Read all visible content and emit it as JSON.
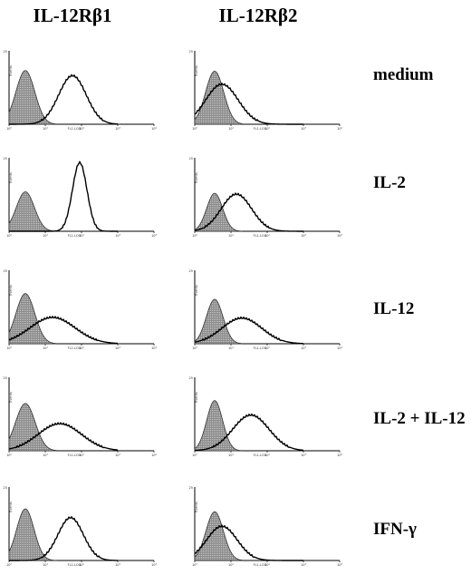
{
  "figure": {
    "columns": [
      "IL-12Rβ1",
      "IL-12Rβ2"
    ],
    "rows": [
      "medium",
      "IL-2",
      "IL-12",
      "IL-2 + IL-12",
      "IFN-γ"
    ]
  },
  "colors": {
    "control_fill": "#8c8c8c",
    "stain_line": "#000000",
    "axis": "#000000"
  },
  "chart_data": [
    {
      "type": "area",
      "column": "IL-12Rβ1",
      "row": "medium",
      "xlabel": "FL1-LOG",
      "ylabel": "Events",
      "ymax_label": "25",
      "x_scale": "log",
      "xlim": [
        1,
        10000
      ],
      "x_ticks": [
        "10⁰",
        "10¹",
        "10²",
        "10³",
        "10⁴"
      ],
      "series": [
        {
          "type": "control",
          "peak_log": 0.45,
          "width": 0.26,
          "height": 0.75
        },
        {
          "type": "stained",
          "peak_log": 1.75,
          "width": 0.38,
          "height": 0.68
        }
      ]
    },
    {
      "type": "area",
      "column": "IL-12Rβ2",
      "row": "medium",
      "xlabel": "FL1-LOG",
      "ylabel": "Events",
      "ymax_label": "25",
      "x_scale": "log",
      "xlim": [
        1,
        10000
      ],
      "x_ticks": [
        "10⁰",
        "10¹",
        "10²",
        "10³",
        "10⁴"
      ],
      "series": [
        {
          "type": "control",
          "peak_log": 0.55,
          "width": 0.25,
          "height": 0.74
        },
        {
          "type": "stained",
          "peak_log": 0.75,
          "width": 0.45,
          "height": 0.56
        }
      ]
    },
    {
      "type": "area",
      "column": "IL-12Rβ1",
      "row": "IL-2",
      "xlabel": "FL1-LOG",
      "ylabel": "Events",
      "ymax_label": "25",
      "x_scale": "log",
      "xlim": [
        1,
        10000
      ],
      "x_ticks": [
        "10⁰",
        "10¹",
        "10²",
        "10³",
        "10⁴"
      ],
      "series": [
        {
          "type": "control",
          "peak_log": 0.45,
          "width": 0.25,
          "height": 0.55
        },
        {
          "type": "stained",
          "peak_log": 1.95,
          "width": 0.2,
          "height": 0.96
        }
      ]
    },
    {
      "type": "area",
      "column": "IL-12Rβ2",
      "row": "IL-2",
      "xlabel": "FL1-LOG",
      "ylabel": "Events",
      "ymax_label": "25",
      "x_scale": "log",
      "xlim": [
        1,
        10000
      ],
      "x_ticks": [
        "10⁰",
        "10¹",
        "10²",
        "10³",
        "10⁴"
      ],
      "series": [
        {
          "type": "control",
          "peak_log": 0.55,
          "width": 0.22,
          "height": 0.53
        },
        {
          "type": "stained",
          "peak_log": 1.15,
          "width": 0.42,
          "height": 0.52
        }
      ]
    },
    {
      "type": "area",
      "column": "IL-12Rβ1",
      "row": "IL-12",
      "xlabel": "FL1-LOG",
      "ylabel": "Events",
      "ymax_label": "25",
      "x_scale": "log",
      "xlim": [
        1,
        10000
      ],
      "x_ticks": [
        "10⁰",
        "10¹",
        "10²",
        "10³",
        "10⁴"
      ],
      "series": [
        {
          "type": "control",
          "peak_log": 0.45,
          "width": 0.26,
          "height": 0.7
        },
        {
          "type": "stained",
          "peak_log": 1.2,
          "width": 0.62,
          "height": 0.37
        }
      ]
    },
    {
      "type": "area",
      "column": "IL-12Rβ2",
      "row": "IL-12",
      "xlabel": "FL1-LOG",
      "ylabel": "Events",
      "ymax_label": "25",
      "x_scale": "log",
      "xlim": [
        1,
        10000
      ],
      "x_ticks": [
        "10⁰",
        "10¹",
        "10²",
        "10³",
        "10⁴"
      ],
      "series": [
        {
          "type": "control",
          "peak_log": 0.55,
          "width": 0.23,
          "height": 0.62
        },
        {
          "type": "stained",
          "peak_log": 1.3,
          "width": 0.55,
          "height": 0.36
        }
      ]
    },
    {
      "type": "area",
      "column": "IL-12Rβ1",
      "row": "IL-2 + IL-12",
      "xlabel": "FL1-LOG",
      "ylabel": "Events",
      "ymax_label": "25",
      "x_scale": "log",
      "xlim": [
        1,
        10000
      ],
      "x_ticks": [
        "10⁰",
        "10¹",
        "10²",
        "10³",
        "10⁴"
      ],
      "series": [
        {
          "type": "control",
          "peak_log": 0.45,
          "width": 0.27,
          "height": 0.66
        },
        {
          "type": "stained",
          "peak_log": 1.4,
          "width": 0.6,
          "height": 0.38
        }
      ]
    },
    {
      "type": "area",
      "column": "IL-12Rβ2",
      "row": "IL-2 + IL-12",
      "xlabel": "FL1-LOG",
      "ylabel": "Events",
      "ymax_label": "25",
      "x_scale": "log",
      "xlim": [
        1,
        10000
      ],
      "x_ticks": [
        "10⁰",
        "10¹",
        "10²",
        "10³",
        "10⁴"
      ],
      "series": [
        {
          "type": "control",
          "peak_log": 0.55,
          "width": 0.22,
          "height": 0.7
        },
        {
          "type": "stained",
          "peak_log": 1.55,
          "width": 0.5,
          "height": 0.5
        }
      ]
    },
    {
      "type": "area",
      "column": "IL-12Rβ1",
      "row": "IFN-γ",
      "xlabel": "FL1-LOG",
      "ylabel": "Events",
      "ymax_label": "25",
      "x_scale": "log",
      "xlim": [
        1,
        10000
      ],
      "x_ticks": [
        "10⁰",
        "10¹",
        "10²",
        "10³",
        "10⁴"
      ],
      "series": [
        {
          "type": "control",
          "peak_log": 0.45,
          "width": 0.24,
          "height": 0.72
        },
        {
          "type": "stained",
          "peak_log": 1.7,
          "width": 0.35,
          "height": 0.6
        }
      ]
    },
    {
      "type": "area",
      "column": "IL-12Rβ2",
      "row": "IFN-γ",
      "xlabel": "FL1-LOG",
      "ylabel": "Events",
      "ymax_label": "25",
      "x_scale": "log",
      "xlim": [
        1,
        10000
      ],
      "x_ticks": [
        "10⁰",
        "10¹",
        "10²",
        "10³",
        "10⁴"
      ],
      "series": [
        {
          "type": "control",
          "peak_log": 0.55,
          "width": 0.24,
          "height": 0.68
        },
        {
          "type": "stained",
          "peak_log": 0.75,
          "width": 0.42,
          "height": 0.48
        }
      ]
    }
  ]
}
